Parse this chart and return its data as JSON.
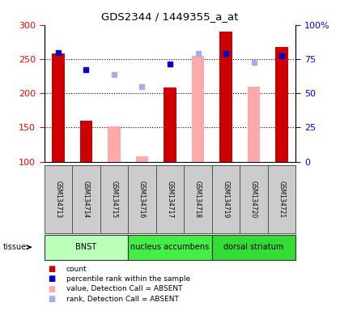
{
  "title": "GDS2344 / 1449355_a_at",
  "samples": [
    "GSM134713",
    "GSM134714",
    "GSM134715",
    "GSM134716",
    "GSM134717",
    "GSM134718",
    "GSM134719",
    "GSM134720",
    "GSM134721"
  ],
  "counts_present": [
    258,
    160,
    null,
    null,
    208,
    null,
    290,
    null,
    268
  ],
  "counts_absent": [
    null,
    null,
    152,
    108,
    null,
    255,
    null,
    210,
    null
  ],
  "rank_present": [
    260,
    235,
    null,
    null,
    243,
    null,
    258,
    null,
    255
  ],
  "rank_absent": [
    null,
    null,
    228,
    210,
    null,
    258,
    null,
    245,
    null
  ],
  "ylim": [
    100,
    300
  ],
  "yticks_left": [
    100,
    150,
    200,
    250,
    300
  ],
  "yticks_right": [
    0,
    25,
    50,
    75,
    100
  ],
  "tissue_groups": [
    {
      "label": "BNST",
      "start": 0,
      "end": 3,
      "color": "#bbffbb"
    },
    {
      "label": "nucleus accumbens",
      "start": 3,
      "end": 6,
      "color": "#44ee44"
    },
    {
      "label": "dorsal striatum",
      "start": 6,
      "end": 9,
      "color": "#33dd33"
    }
  ],
  "bar_width": 0.45,
  "color_count_present": "#cc0000",
  "color_count_absent": "#ffaaaa",
  "color_rank_present": "#0000cc",
  "color_rank_absent": "#aaaaee",
  "legend_items": [
    {
      "color": "#cc0000",
      "label": "count"
    },
    {
      "color": "#0000cc",
      "label": "percentile rank within the sample"
    },
    {
      "color": "#ffaaaa",
      "label": "value, Detection Call = ABSENT"
    },
    {
      "color": "#aaaaee",
      "label": "rank, Detection Call = ABSENT"
    }
  ],
  "grid_vals": [
    150,
    200,
    250
  ],
  "sample_box_color": "#cccccc",
  "tissue_label": "tissue"
}
